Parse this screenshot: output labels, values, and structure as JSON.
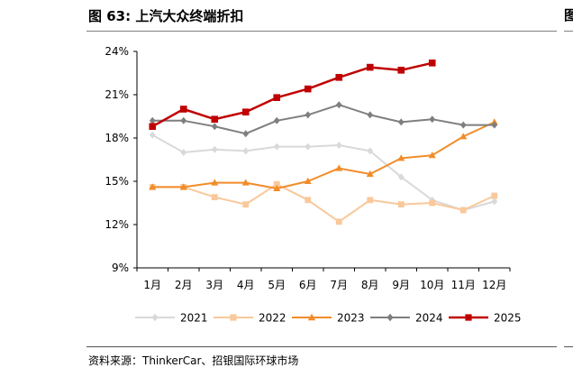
{
  "figure": {
    "title": "图 63: 上汽大众终端折扣",
    "source": "资料来源：ThinkerCar、招银国际环球市场",
    "right_edge_glyph": "图"
  },
  "chart_data": {
    "type": "line",
    "categories": [
      "1月",
      "2月",
      "3月",
      "4月",
      "5月",
      "6月",
      "7月",
      "8月",
      "9月",
      "10月",
      "11月",
      "12月"
    ],
    "ylim": [
      9,
      24
    ],
    "yticks": [
      9,
      12,
      15,
      18,
      21,
      24
    ],
    "ytick_labels": [
      "9%",
      "12%",
      "15%",
      "18%",
      "21%",
      "24%"
    ],
    "grid": false,
    "legend_position": "bottom",
    "series": [
      {
        "name": "2021",
        "color": "#d9d9d9",
        "marker": "diamond",
        "width": 2,
        "values": [
          18.2,
          17.0,
          17.2,
          17.1,
          17.4,
          17.4,
          17.5,
          17.1,
          15.3,
          13.7,
          13.0,
          13.6
        ]
      },
      {
        "name": "2022",
        "color": "#f9c89b",
        "marker": "square",
        "width": 2,
        "values": [
          14.6,
          14.6,
          13.9,
          13.4,
          14.8,
          13.7,
          12.2,
          13.7,
          13.4,
          13.5,
          13.0,
          14.0
        ]
      },
      {
        "name": "2023",
        "color": "#f28c28",
        "marker": "triangle",
        "width": 2,
        "values": [
          14.6,
          14.6,
          14.9,
          14.9,
          14.5,
          15.0,
          15.9,
          15.5,
          16.6,
          16.8,
          18.1,
          19.1
        ]
      },
      {
        "name": "2024",
        "color": "#7f7f7f",
        "marker": "diamond",
        "width": 2,
        "values": [
          19.2,
          19.2,
          18.8,
          18.3,
          19.2,
          19.6,
          20.3,
          19.6,
          19.1,
          19.3,
          18.9,
          18.9
        ]
      },
      {
        "name": "2025",
        "color": "#c00000",
        "marker": "square",
        "width": 2.5,
        "values": [
          18.8,
          20.0,
          19.3,
          19.8,
          20.8,
          21.4,
          22.2,
          22.9,
          22.7,
          23.2,
          null,
          null
        ]
      }
    ]
  }
}
